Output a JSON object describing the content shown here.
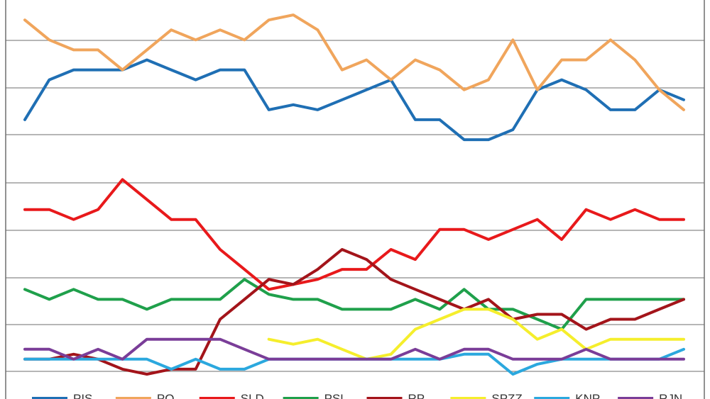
{
  "chart_data": {
    "type": "line",
    "x": [
      1,
      2,
      3,
      4,
      5,
      6,
      7,
      8,
      9,
      10,
      11,
      12,
      13,
      14,
      15,
      16,
      17,
      18,
      19,
      20,
      21,
      22,
      23,
      24,
      25,
      26,
      27,
      28
    ],
    "ylim": [
      0,
      38
    ],
    "grid": true,
    "legend_position": "bottom",
    "series": [
      {
        "name": "PIS",
        "color": "#1F6FB4",
        "values": [
          26,
          30,
          31,
          31,
          31,
          32,
          31,
          30,
          31,
          31,
          27,
          27.5,
          27,
          28,
          29,
          30,
          26,
          26,
          24,
          24,
          25,
          29,
          30,
          29,
          27,
          27,
          29,
          28
        ]
      },
      {
        "name": "PO",
        "color": "#F0A55C",
        "values": [
          36,
          34,
          33,
          33,
          31,
          33,
          35,
          34,
          35,
          34,
          36,
          36.5,
          35,
          31,
          32,
          30,
          32,
          31,
          29,
          30,
          34,
          29,
          32,
          32,
          34,
          32,
          29,
          27
        ]
      },
      {
        "name": "SLD",
        "color": "#E8191B",
        "values": [
          17,
          17,
          16,
          17,
          20,
          18,
          16,
          16,
          13,
          11,
          9,
          9.5,
          10,
          11,
          11,
          13,
          12,
          15,
          15,
          14,
          15,
          16,
          14,
          17,
          16,
          17,
          16,
          16
        ]
      },
      {
        "name": "PSL",
        "color": "#1FA04B",
        "values": [
          9,
          8,
          9,
          8,
          8,
          7,
          8,
          8,
          8,
          10,
          8.5,
          8,
          8,
          7,
          7,
          7,
          8,
          7,
          9,
          7,
          7,
          6,
          5,
          8,
          8,
          8,
          8,
          8
        ]
      },
      {
        "name": "RP",
        "color": "#A3141A",
        "values": [
          2,
          2,
          2.5,
          2,
          1,
          0.5,
          1,
          1,
          6,
          8,
          10,
          9.5,
          11,
          13,
          12,
          10,
          9,
          8,
          7,
          8,
          6,
          6.5,
          6.5,
          5,
          6,
          6,
          7,
          8
        ]
      },
      {
        "name": "SPZZ",
        "color": "#F5EE2C",
        "values": [
          null,
          null,
          null,
          null,
          null,
          null,
          null,
          null,
          null,
          null,
          4,
          3.5,
          4,
          3,
          2,
          2.5,
          5,
          6,
          7,
          7,
          6,
          4,
          5,
          3,
          4,
          4,
          4,
          4
        ]
      },
      {
        "name": "KNP",
        "color": "#2BA8DE",
        "values": [
          2,
          2,
          2,
          2,
          2,
          2,
          1,
          2,
          1,
          1,
          2,
          2,
          2,
          2,
          2,
          2,
          2,
          2,
          2.5,
          2.5,
          0.5,
          1.5,
          2,
          2,
          2,
          2,
          2,
          3
        ]
      },
      {
        "name": "RJN",
        "color": "#7A3D98",
        "values": [
          3,
          3,
          2,
          3,
          2,
          4,
          4,
          4,
          4,
          3,
          2,
          2,
          2,
          2,
          2,
          2,
          3,
          2,
          3,
          3,
          2,
          2,
          2,
          3,
          2,
          2,
          2,
          2
        ]
      }
    ]
  }
}
